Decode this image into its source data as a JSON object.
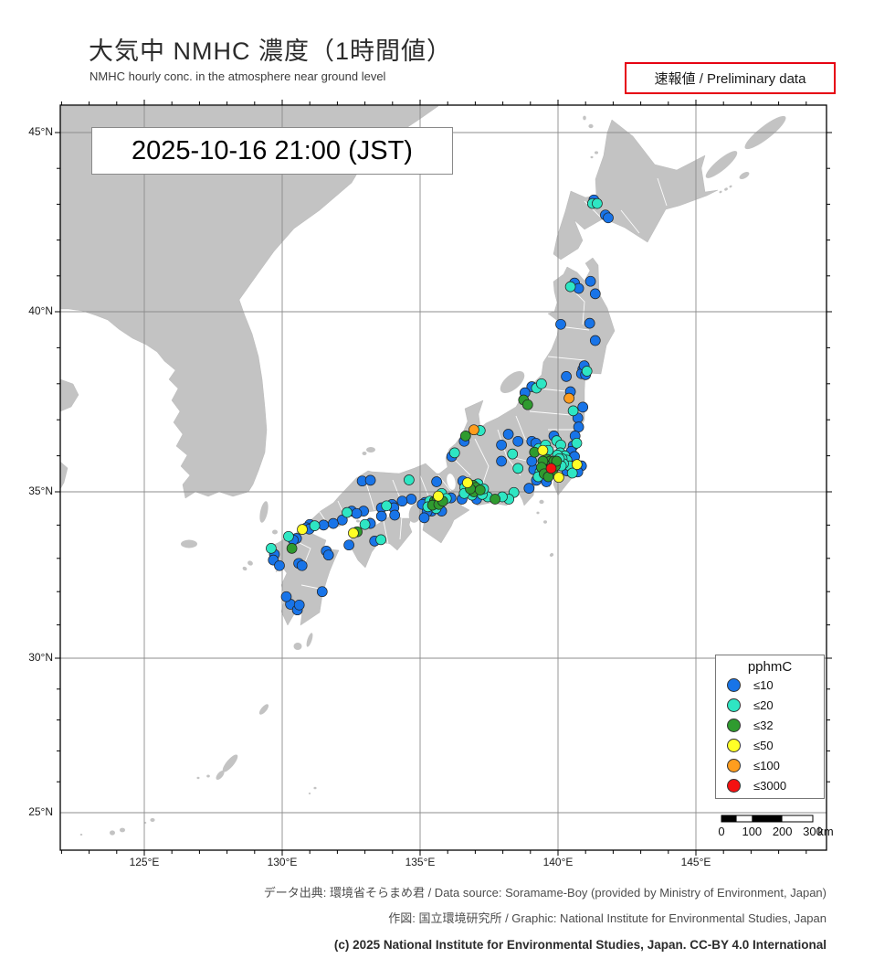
{
  "header": {
    "title": "大気中 NMHC 濃度（1時間値）",
    "subtitle": "NMHC hourly conc. in the atmosphere near ground level",
    "preliminary_badge": "速報値 / Preliminary data",
    "timestamp": "2025-10-16  21:00 (JST)"
  },
  "axes": {
    "lat_ticks": [
      {
        "label": "45°N",
        "lat": 45
      },
      {
        "label": "40°N",
        "lat": 40
      },
      {
        "label": "35°N",
        "lat": 35
      },
      {
        "label": "30°N",
        "lat": 30
      },
      {
        "label": "25°N",
        "lat": 25
      }
    ],
    "lon_ticks": [
      {
        "label": "125°E",
        "lon": 125
      },
      {
        "label": "130°E",
        "lon": 130
      },
      {
        "label": "135°E",
        "lon": 135
      },
      {
        "label": "140°E",
        "lon": 140
      },
      {
        "label": "145°E",
        "lon": 145
      }
    ]
  },
  "legend": {
    "title": "pphmC",
    "items": [
      {
        "label": "≤10",
        "color": "#1874e8"
      },
      {
        "label": "≤20",
        "color": "#2ee6c3"
      },
      {
        "label": "≤32",
        "color": "#2f9b2f"
      },
      {
        "label": "≤50",
        "color": "#ffff26"
      },
      {
        "label": "≤100",
        "color": "#ff9d1e"
      },
      {
        "label": "≤3000",
        "color": "#f51111"
      }
    ]
  },
  "scalebar": {
    "tick_labels": [
      "0",
      "100",
      "200",
      "300"
    ],
    "unit": "km"
  },
  "footer": {
    "line1": "データ出典: 環境省そらまめ君 / Data source: Soramame-Boy (provided by Ministry of Environment, Japan)",
    "line2": "作図: 国立環境研究所 / Graphic: National Institute for Environmental Studies, Japan",
    "line3": "(c) 2025 National Institute for Environmental Studies, Japan. CC-BY 4.0 International"
  },
  "colors": {
    "land": "#c3c3c3",
    "sea": "#ffffff",
    "grid": "#8c8c8c",
    "frame": "#000000",
    "accent_red": "#e60012",
    "dot_outline": "#222222"
  },
  "chart_data": {
    "type": "map-scatter",
    "units": "pphmC",
    "extent": {
      "lon": [
        121.9,
        149.7
      ],
      "lat": [
        24.0,
        45.8
      ]
    },
    "classes": [
      "≤10",
      "≤20",
      "≤32",
      "≤50",
      "≤100",
      "≤3000"
    ],
    "stations": [
      [
        141.25,
        43.02,
        1
      ],
      [
        141.42,
        43.02,
        1
      ],
      [
        141.3,
        43.12,
        0
      ],
      [
        141.72,
        42.7,
        0
      ],
      [
        141.82,
        42.62,
        0
      ],
      [
        140.6,
        40.8,
        0
      ],
      [
        140.45,
        40.7,
        1
      ],
      [
        140.75,
        40.65,
        0
      ],
      [
        141.18,
        40.85,
        0
      ],
      [
        141.35,
        40.5,
        0
      ],
      [
        141.15,
        39.68,
        0
      ],
      [
        141.35,
        39.2,
        0
      ],
      [
        140.1,
        39.65,
        0
      ],
      [
        140.9,
        38.4,
        0
      ],
      [
        141.05,
        38.35,
        1
      ],
      [
        140.85,
        38.28,
        0
      ],
      [
        141.0,
        38.25,
        0
      ],
      [
        140.95,
        38.5,
        0
      ],
      [
        140.3,
        38.2,
        0
      ],
      [
        140.4,
        37.6,
        4
      ],
      [
        140.45,
        37.78,
        0
      ],
      [
        140.9,
        37.35,
        0
      ],
      [
        140.55,
        37.25,
        1
      ],
      [
        140.72,
        37.05,
        0
      ],
      [
        140.75,
        36.8,
        0
      ],
      [
        140.62,
        36.55,
        0
      ],
      [
        140.68,
        36.35,
        1
      ],
      [
        139.05,
        37.92,
        0
      ],
      [
        139.22,
        37.88,
        1
      ],
      [
        138.8,
        37.75,
        0
      ],
      [
        138.75,
        37.55,
        2
      ],
      [
        138.9,
        37.42,
        2
      ],
      [
        139.4,
        38.0,
        1
      ],
      [
        138.2,
        36.6,
        0
      ],
      [
        138.55,
        36.4,
        0
      ],
      [
        137.95,
        36.3,
        0
      ],
      [
        138.35,
        36.05,
        1
      ],
      [
        137.95,
        35.85,
        0
      ],
      [
        138.55,
        35.65,
        1
      ],
      [
        136.95,
        36.72,
        4
      ],
      [
        137.18,
        36.7,
        1
      ],
      [
        136.65,
        36.55,
        2
      ],
      [
        136.6,
        36.4,
        0
      ],
      [
        136.25,
        36.08,
        1
      ],
      [
        136.15,
        35.98,
        0
      ],
      [
        139.05,
        36.4,
        0
      ],
      [
        139.2,
        36.35,
        0
      ],
      [
        139.45,
        36.15,
        3
      ],
      [
        139.3,
        36.2,
        1
      ],
      [
        139.15,
        36.1,
        2
      ],
      [
        139.55,
        36.3,
        1
      ],
      [
        139.65,
        36.15,
        1
      ],
      [
        139.85,
        36.55,
        0
      ],
      [
        139.95,
        36.42,
        1
      ],
      [
        140.1,
        36.3,
        1
      ],
      [
        139.6,
        35.9,
        2
      ],
      [
        139.72,
        35.85,
        2
      ],
      [
        139.5,
        35.75,
        2
      ],
      [
        139.62,
        35.72,
        2
      ],
      [
        139.78,
        35.75,
        2
      ],
      [
        139.85,
        35.85,
        2
      ],
      [
        139.45,
        35.85,
        2
      ],
      [
        139.55,
        35.6,
        2
      ],
      [
        139.68,
        35.55,
        2
      ],
      [
        139.8,
        35.6,
        2
      ],
      [
        139.9,
        35.72,
        2
      ],
      [
        139.95,
        35.85,
        2
      ],
      [
        139.4,
        35.68,
        2
      ],
      [
        139.35,
        35.55,
        1
      ],
      [
        139.5,
        35.5,
        2
      ],
      [
        139.65,
        35.42,
        2
      ],
      [
        139.75,
        35.65,
        5
      ],
      [
        140.03,
        35.4,
        3
      ],
      [
        140.69,
        35.76,
        3
      ],
      [
        140.08,
        36.08,
        1
      ],
      [
        140.25,
        36.0,
        1
      ],
      [
        140.32,
        35.88,
        1
      ],
      [
        140.15,
        35.92,
        1
      ],
      [
        140.42,
        35.72,
        1
      ],
      [
        139.98,
        36.02,
        1
      ],
      [
        140.2,
        35.78,
        1
      ],
      [
        140.05,
        35.92,
        1
      ],
      [
        140.12,
        35.72,
        1
      ],
      [
        139.28,
        35.42,
        1
      ],
      [
        140.52,
        35.52,
        1
      ],
      [
        140.55,
        36.28,
        0
      ],
      [
        140.48,
        36.12,
        0
      ],
      [
        140.6,
        35.98,
        0
      ],
      [
        139.12,
        35.62,
        0
      ],
      [
        139.22,
        35.32,
        0
      ],
      [
        139.58,
        35.28,
        0
      ],
      [
        140.32,
        35.58,
        0
      ],
      [
        140.85,
        35.72,
        0
      ],
      [
        140.72,
        35.55,
        0
      ],
      [
        139.05,
        35.85,
        0
      ],
      [
        138.95,
        35.1,
        0
      ],
      [
        138.4,
        34.98,
        1
      ],
      [
        138.22,
        34.78,
        1
      ],
      [
        137.98,
        34.85,
        1
      ],
      [
        137.72,
        34.78,
        2
      ],
      [
        137.45,
        34.85,
        1
      ],
      [
        137.25,
        34.92,
        1
      ],
      [
        136.72,
        35.25,
        3
      ],
      [
        136.92,
        35.18,
        2
      ],
      [
        137.02,
        35.12,
        2
      ],
      [
        136.95,
        35.0,
        2
      ],
      [
        137.1,
        35.22,
        1
      ],
      [
        136.82,
        35.08,
        2
      ],
      [
        137.18,
        35.05,
        2
      ],
      [
        136.62,
        35.12,
        1
      ],
      [
        136.88,
        34.9,
        1
      ],
      [
        137.3,
        35.08,
        1
      ],
      [
        136.55,
        35.3,
        0
      ],
      [
        137.05,
        34.78,
        0
      ],
      [
        136.52,
        34.78,
        0
      ],
      [
        136.6,
        34.95,
        1
      ],
      [
        135.66,
        34.87,
        3
      ],
      [
        135.52,
        34.72,
        2
      ],
      [
        135.62,
        34.78,
        2
      ],
      [
        135.45,
        34.6,
        2
      ],
      [
        135.68,
        34.62,
        2
      ],
      [
        135.82,
        34.72,
        2
      ],
      [
        135.35,
        34.72,
        1
      ],
      [
        135.58,
        34.5,
        1
      ],
      [
        135.28,
        34.55,
        1
      ],
      [
        135.78,
        34.95,
        1
      ],
      [
        135.95,
        34.8,
        1
      ],
      [
        135.18,
        34.68,
        0
      ],
      [
        135.08,
        34.62,
        0
      ],
      [
        135.42,
        34.42,
        0
      ],
      [
        135.78,
        34.42,
        0
      ],
      [
        136.12,
        34.82,
        0
      ],
      [
        135.25,
        34.4,
        0
      ],
      [
        135.6,
        35.28,
        0
      ],
      [
        135.15,
        34.22,
        0
      ],
      [
        134.68,
        34.78,
        0
      ],
      [
        134.35,
        34.72,
        0
      ],
      [
        133.98,
        34.62,
        0
      ],
      [
        133.78,
        34.58,
        1
      ],
      [
        133.6,
        34.52,
        0
      ],
      [
        134.05,
        34.52,
        0
      ],
      [
        132.95,
        34.42,
        0
      ],
      [
        132.52,
        34.42,
        0
      ],
      [
        132.35,
        34.38,
        1
      ],
      [
        132.7,
        34.35,
        0
      ],
      [
        132.18,
        34.15,
        0
      ],
      [
        131.85,
        34.05,
        0
      ],
      [
        131.5,
        34.0,
        0
      ],
      [
        131.18,
        33.98,
        1
      ],
      [
        131.0,
        34.02,
        0
      ],
      [
        132.9,
        35.3,
        0
      ],
      [
        133.2,
        35.32,
        0
      ],
      [
        134.6,
        35.33,
        1
      ],
      [
        130.73,
        33.87,
        3
      ],
      [
        130.88,
        33.92,
        0
      ],
      [
        130.98,
        33.88,
        0
      ],
      [
        130.52,
        33.6,
        0
      ],
      [
        130.4,
        33.55,
        0
      ],
      [
        130.23,
        33.66,
        1
      ],
      [
        130.35,
        33.3,
        2
      ],
      [
        129.6,
        33.3,
        1
      ],
      [
        129.72,
        33.12,
        0
      ],
      [
        129.68,
        32.95,
        0
      ],
      [
        129.9,
        32.78,
        0
      ],
      [
        130.6,
        32.85,
        0
      ],
      [
        130.72,
        32.78,
        0
      ],
      [
        131.6,
        33.22,
        0
      ],
      [
        131.68,
        33.1,
        0
      ],
      [
        131.45,
        32.0,
        0
      ],
      [
        130.3,
        31.62,
        0
      ],
      [
        130.55,
        31.45,
        0
      ],
      [
        130.62,
        31.6,
        0
      ],
      [
        130.15,
        31.85,
        0
      ],
      [
        133.6,
        34.27,
        0
      ],
      [
        134.08,
        34.3,
        0
      ],
      [
        133.2,
        34.05,
        0
      ],
      [
        133.0,
        34.02,
        1
      ],
      [
        132.58,
        33.76,
        3
      ],
      [
        132.72,
        33.8,
        2
      ],
      [
        133.58,
        33.56,
        1
      ],
      [
        133.35,
        33.52,
        0
      ],
      [
        132.42,
        33.4,
        0
      ]
    ]
  }
}
